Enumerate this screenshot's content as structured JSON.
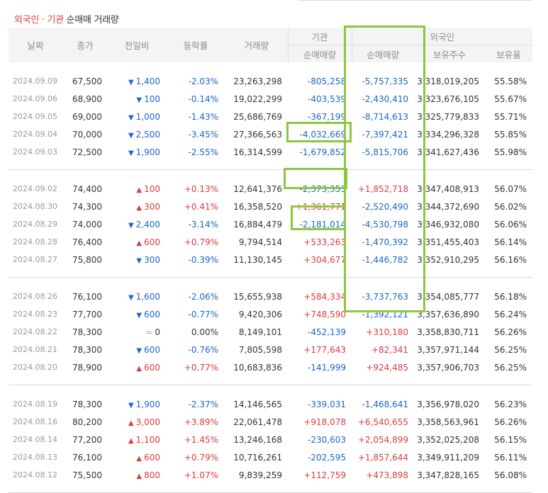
{
  "title": {
    "accent": "외국인 · 기관",
    "plain": "순매매 거래량"
  },
  "headers": {
    "date": "날짜",
    "close": "종가",
    "change": "전일비",
    "rate": "등락률",
    "volume": "거래량",
    "inst": "기관",
    "foreign": "외국인",
    "inst_net": "순매매량",
    "foreign_net": "순매매량",
    "holdings": "보유주수",
    "ratio": "보유율"
  },
  "colors": {
    "up": "#e0393e",
    "down": "#1a66cc",
    "highlight": "#8dc63f"
  },
  "groups": [
    {
      "rows": [
        {
          "date": "2024.09.09",
          "close": "67,500",
          "dir": "down",
          "change": "1,400",
          "rate": "-2.03%",
          "volume": "23,263,298",
          "inst": "-805,258",
          "foreign": "-5,757,335",
          "holdings": "3,318,019,205",
          "ratio": "55.58%"
        },
        {
          "date": "2024.09.06",
          "close": "68,900",
          "dir": "down",
          "change": "100",
          "rate": "-0.14%",
          "volume": "19,022,299",
          "inst": "-403,539",
          "foreign": "-2,430,410",
          "holdings": "3,323,676,105",
          "ratio": "55.67%"
        },
        {
          "date": "2024.09.05",
          "close": "69,000",
          "dir": "down",
          "change": "1,000",
          "rate": "-1.43%",
          "volume": "25,686,769",
          "inst": "-367,199",
          "foreign": "-8,714,613",
          "holdings": "3,325,779,833",
          "ratio": "55.71%"
        },
        {
          "date": "2024.09.04",
          "close": "70,000",
          "dir": "down",
          "change": "2,500",
          "rate": "-3.45%",
          "volume": "27,366,563",
          "inst": "-4,032,669",
          "foreign": "-7,397,421",
          "holdings": "3,334,296,328",
          "ratio": "55.85%"
        },
        {
          "date": "2024.09.03",
          "close": "72,500",
          "dir": "down",
          "change": "1,900",
          "rate": "-2.55%",
          "volume": "16,314,599",
          "inst": "-1,679,852",
          "foreign": "-5,815,706",
          "holdings": "3,341,627,436",
          "ratio": "55.98%"
        }
      ]
    },
    {
      "rows": [
        {
          "date": "2024.09.02",
          "close": "74,400",
          "dir": "up",
          "change": "100",
          "rate": "+0.13%",
          "volume": "12,641,376",
          "inst": "-2,373,353",
          "foreign": "+1,852,718",
          "holdings": "3,347,408,913",
          "ratio": "56.07%"
        },
        {
          "date": "2024.08.30",
          "close": "74,300",
          "dir": "up",
          "change": "300",
          "rate": "+0.41%",
          "volume": "16,358,520",
          "inst": "+1,361,771",
          "foreign": "-2,520,490",
          "holdings": "3,344,372,690",
          "ratio": "56.02%"
        },
        {
          "date": "2024.08.29",
          "close": "74,000",
          "dir": "down",
          "change": "2,400",
          "rate": "-3.14%",
          "volume": "16,884,479",
          "inst": "-2,181,014",
          "foreign": "-4,530,798",
          "holdings": "3,346,932,080",
          "ratio": "56.06%"
        },
        {
          "date": "2024.08.28",
          "close": "76,400",
          "dir": "up",
          "change": "600",
          "rate": "+0.79%",
          "volume": "9,794,514",
          "inst": "+533,263",
          "foreign": "-1,470,392",
          "holdings": "3,351,455,403",
          "ratio": "56.14%"
        },
        {
          "date": "2024.08.27",
          "close": "75,800",
          "dir": "down",
          "change": "300",
          "rate": "-0.39%",
          "volume": "11,130,145",
          "inst": "+304,677",
          "foreign": "-1,446,782",
          "holdings": "3,352,910,295",
          "ratio": "56.16%"
        }
      ]
    },
    {
      "rows": [
        {
          "date": "2024.08.26",
          "close": "76,100",
          "dir": "down",
          "change": "1,600",
          "rate": "-2.06%",
          "volume": "15,655,938",
          "inst": "+584,334",
          "foreign": "-3,737,763",
          "holdings": "3,354,085,777",
          "ratio": "56.18%"
        },
        {
          "date": "2024.08.23",
          "close": "77,700",
          "dir": "down",
          "change": "600",
          "rate": "-0.77%",
          "volume": "9,420,306",
          "inst": "+748,590",
          "foreign": "-1,392,121",
          "holdings": "3,357,636,890",
          "ratio": "56.24%"
        },
        {
          "date": "2024.08.22",
          "close": "78,300",
          "dir": "flat",
          "change": "0",
          "rate": "0.00%",
          "volume": "8,149,101",
          "inst": "-452,139",
          "foreign": "+310,180",
          "holdings": "3,358,830,711",
          "ratio": "56.26%"
        },
        {
          "date": "2024.08.21",
          "close": "78,300",
          "dir": "down",
          "change": "600",
          "rate": "-0.76%",
          "volume": "7,805,598",
          "inst": "+177,643",
          "foreign": "+82,341",
          "holdings": "3,357,971,144",
          "ratio": "56.25%"
        },
        {
          "date": "2024.08.20",
          "close": "78,900",
          "dir": "up",
          "change": "600",
          "rate": "+0.77%",
          "volume": "10,683,836",
          "inst": "-141,999",
          "foreign": "+924,485",
          "holdings": "3,357,906,703",
          "ratio": "56.25%"
        }
      ]
    },
    {
      "rows": [
        {
          "date": "2024.08.19",
          "close": "78,300",
          "dir": "down",
          "change": "1,900",
          "rate": "-2.37%",
          "volume": "14,146,565",
          "inst": "-339,031",
          "foreign": "-1,468,641",
          "holdings": "3,356,978,020",
          "ratio": "56.23%"
        },
        {
          "date": "2024.08.16",
          "close": "80,200",
          "dir": "up",
          "change": "3,000",
          "rate": "+3.89%",
          "volume": "22,061,478",
          "inst": "+918,078",
          "foreign": "+6,540,655",
          "holdings": "3,358,563,961",
          "ratio": "56.26%"
        },
        {
          "date": "2024.08.14",
          "close": "77,200",
          "dir": "up",
          "change": "1,100",
          "rate": "+1.45%",
          "volume": "13,246,168",
          "inst": "-230,603",
          "foreign": "+2,054,899",
          "holdings": "3,352,025,208",
          "ratio": "56.15%"
        },
        {
          "date": "2024.08.13",
          "close": "76,100",
          "dir": "up",
          "change": "600",
          "rate": "+0.79%",
          "volume": "10,716,261",
          "inst": "-202,595",
          "foreign": "+1,857,644",
          "holdings": "3,349,911,209",
          "ratio": "56.11%"
        },
        {
          "date": "2024.08.12",
          "close": "75,500",
          "dir": "up",
          "change": "800",
          "rate": "+1.07%",
          "volume": "9,839,259",
          "inst": "+112,759",
          "foreign": "+473,898",
          "holdings": "3,347,828,165",
          "ratio": "56.08%"
        }
      ]
    }
  ]
}
